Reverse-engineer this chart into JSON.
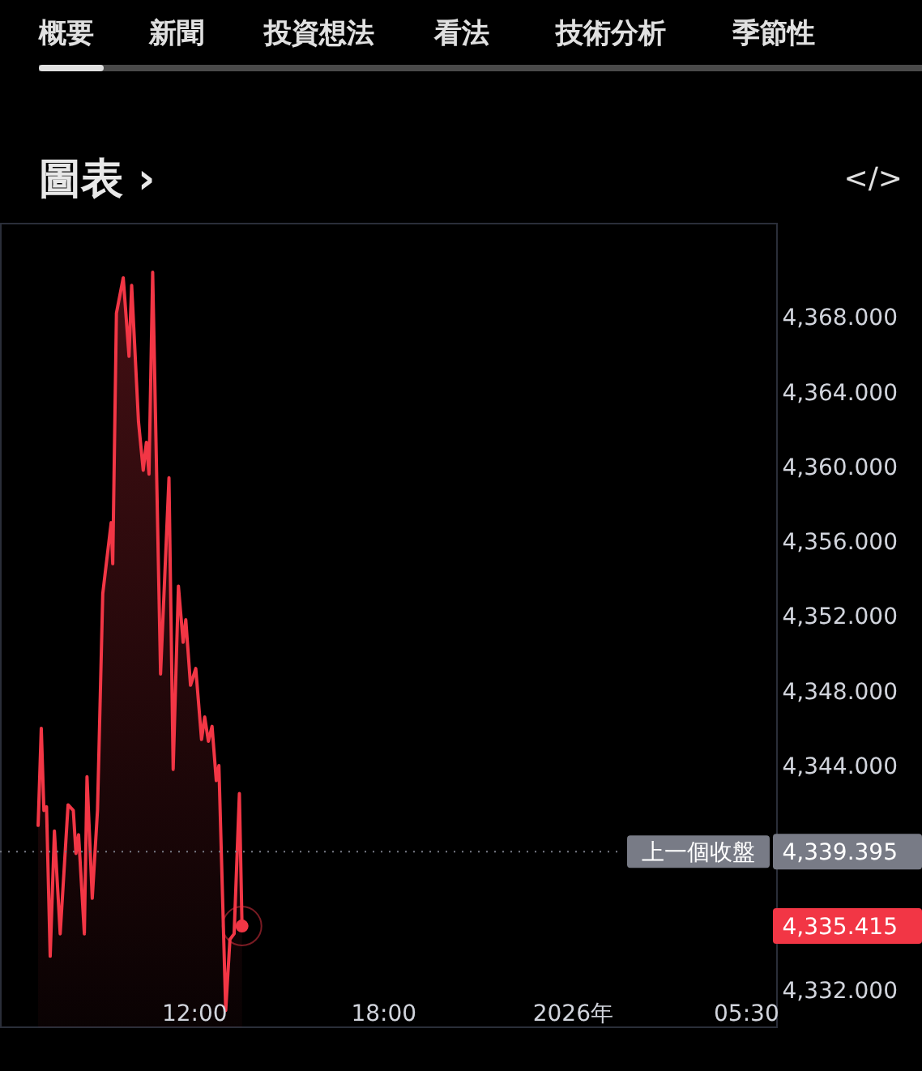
{
  "chart_data": {
    "type": "area",
    "title": "圖表 ›",
    "annotations": [
      "概要",
      "新聞",
      "投資想法",
      "看法",
      "技術分析",
      "季節性",
      "</>",
      "4,339.395",
      "4,335.415"
    ],
    "series": [
      {
        "color": "#f23645",
        "x": [
          "2025-12-31T07:02",
          "2025-12-31T07:08",
          "2025-12-31T07:13",
          "2025-12-31T07:18",
          "2025-12-31T07:25",
          "2025-12-31T07:33",
          "2025-12-31T07:44",
          "2025-12-31T07:59",
          "2025-12-31T08:09",
          "2025-12-31T08:14",
          "2025-12-31T08:19",
          "2025-12-31T08:30",
          "2025-12-31T08:35",
          "2025-12-31T08:45",
          "2025-12-31T08:55",
          "2025-12-31T09:05",
          "2025-12-31T09:21",
          "2025-12-31T09:24",
          "2025-12-31T09:31",
          "2025-12-31T09:44",
          "2025-12-31T09:55",
          "2025-12-31T10:00",
          "2025-12-31T10:13",
          "2025-12-31T10:22",
          "2025-12-31T10:28",
          "2025-12-31T10:33",
          "2025-12-31T10:40",
          "2025-12-31T10:55",
          "2025-12-31T11:11",
          "2025-12-31T11:19",
          "2025-12-31T11:29",
          "2025-12-31T11:38",
          "2025-12-31T11:43",
          "2025-12-31T11:52",
          "2025-12-31T12:02",
          "2025-12-31T12:13",
          "2025-12-31T12:19",
          "2025-12-31T12:26",
          "2025-12-31T12:33",
          "2025-12-31T12:41",
          "2025-12-31T12:46",
          "2025-12-31T12:59",
          "2025-12-31T13:07",
          "2025-12-31T13:15",
          "2025-12-31T13:25",
          "2025-12-31T13:30"
        ],
        "values": [
          4340.8,
          4346.0,
          4341.6,
          4341.8,
          4333.8,
          4340.5,
          4335.0,
          4341.9,
          4341.6,
          4339.3,
          4340.3,
          4335.0,
          4343.4,
          4336.9,
          4341.6,
          4353.2,
          4357.0,
          4354.8,
          4368.2,
          4370.1,
          4365.9,
          4369.7,
          4362.4,
          4359.8,
          4361.3,
          4359.6,
          4370.4,
          4348.9,
          4359.4,
          4343.8,
          4353.6,
          4350.6,
          4351.8,
          4348.3,
          4349.2,
          4345.4,
          4346.6,
          4345.3,
          4346.1,
          4343.2,
          4344.0,
          4330.9,
          4334.7,
          4335.0,
          4342.5,
          4335.415
        ]
      }
    ],
    "xticks": [
      {
        "value": "2025-12-31T12:00",
        "label": "12:00"
      },
      {
        "value": "2025-12-31T18:00",
        "label": "18:00"
      },
      {
        "value": "2026-01-01T00:00",
        "label": "2026年"
      },
      {
        "value": "2026-01-01T05:30",
        "label": "05:30"
      }
    ],
    "yticks": [
      {
        "value": 4332,
        "label": "4,332.000"
      },
      {
        "value": 4344,
        "label": "4,344.000"
      },
      {
        "value": 4348,
        "label": "4,348.000"
      },
      {
        "value": 4352,
        "label": "4,352.000"
      },
      {
        "value": 4356,
        "label": "4,356.000"
      },
      {
        "value": 4360,
        "label": "4,360.000"
      },
      {
        "value": 4364,
        "label": "4,364.000"
      },
      {
        "value": 4368,
        "label": "4,368.000"
      }
    ],
    "xlim": [
      "2025-12-31T05:51",
      "2026-01-01T06:28"
    ],
    "ylim": [
      4330,
      4373
    ],
    "ref_lines": [
      {
        "axis": "y",
        "value": 4339.395,
        "label": "上一個收盤",
        "color": "#787b86",
        "line_style": "dotted"
      }
    ]
  }
}
